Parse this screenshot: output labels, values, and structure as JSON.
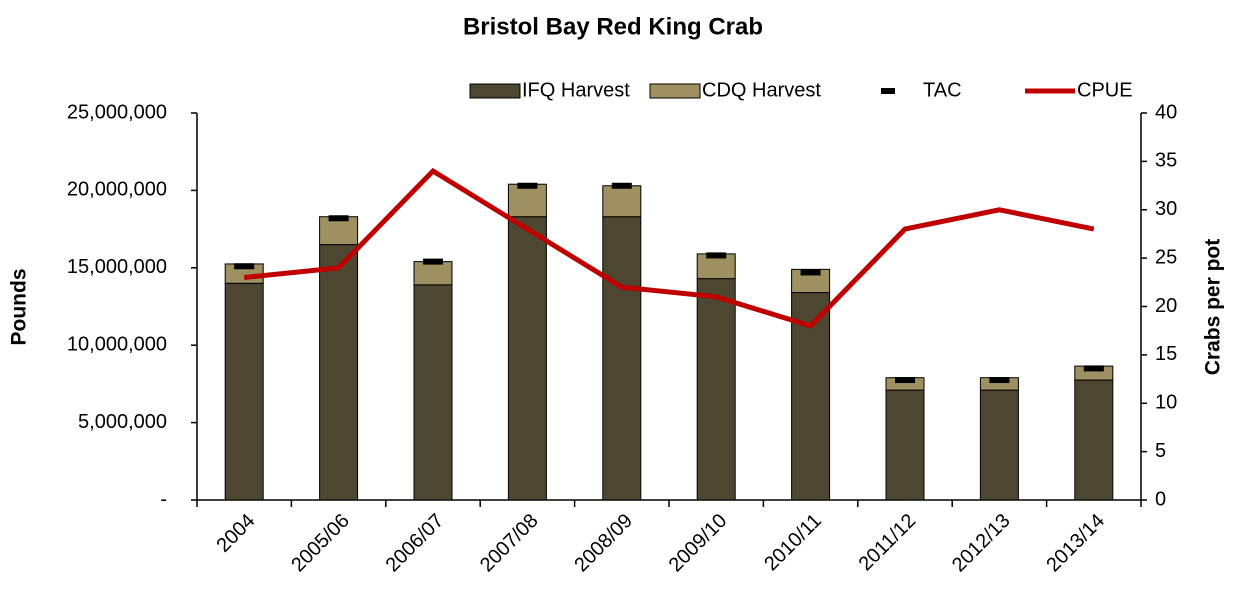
{
  "chart_data": {
    "type": "bar",
    "title": "Bristol Bay Red King Crab",
    "categories": [
      "2004",
      "2005/06",
      "2006/07",
      "2007/08",
      "2008/09",
      "2009/10",
      "2010/11",
      "2011/12",
      "2012/13",
      "2013/14"
    ],
    "series": [
      {
        "name": "IFQ Harvest",
        "type": "bar",
        "color": "#4d4630",
        "values": [
          14000000,
          16500000,
          13900000,
          18300000,
          18300000,
          14300000,
          13400000,
          7100000,
          7100000,
          7750000
        ]
      },
      {
        "name": "CDQ Harvest",
        "type": "bar",
        "color": "#9e9060",
        "values": [
          1250000,
          1800000,
          1500000,
          2100000,
          2000000,
          1600000,
          1500000,
          800000,
          800000,
          900000
        ]
      },
      {
        "name": "TAC",
        "type": "marker",
        "color": "#000000",
        "values": [
          15100000,
          18200000,
          15400000,
          20300000,
          20300000,
          15800000,
          14700000,
          7750000,
          7750000,
          8500000
        ]
      },
      {
        "name": "CPUE",
        "type": "line",
        "axis": "y2",
        "color": "#c00000",
        "values": [
          23,
          24,
          34,
          28,
          22,
          21,
          18,
          28,
          30,
          28
        ]
      }
    ],
    "ylabel": "Pounds",
    "y2label": "Crabs per pot",
    "ylim": [
      0,
      25000000
    ],
    "yticks": [
      {
        "value": 0,
        "label": "-"
      },
      {
        "value": 5000000,
        "label": "5,000,000"
      },
      {
        "value": 10000000,
        "label": "10,000,000"
      },
      {
        "value": 15000000,
        "label": "15,000,000"
      },
      {
        "value": 20000000,
        "label": "20,000,000"
      },
      {
        "value": 25000000,
        "label": "25,000,000"
      }
    ],
    "y2lim": [
      0,
      40
    ],
    "y2ticks": [
      0,
      5,
      10,
      15,
      20,
      25,
      30,
      35,
      40
    ],
    "grid": false,
    "legend": "top"
  }
}
